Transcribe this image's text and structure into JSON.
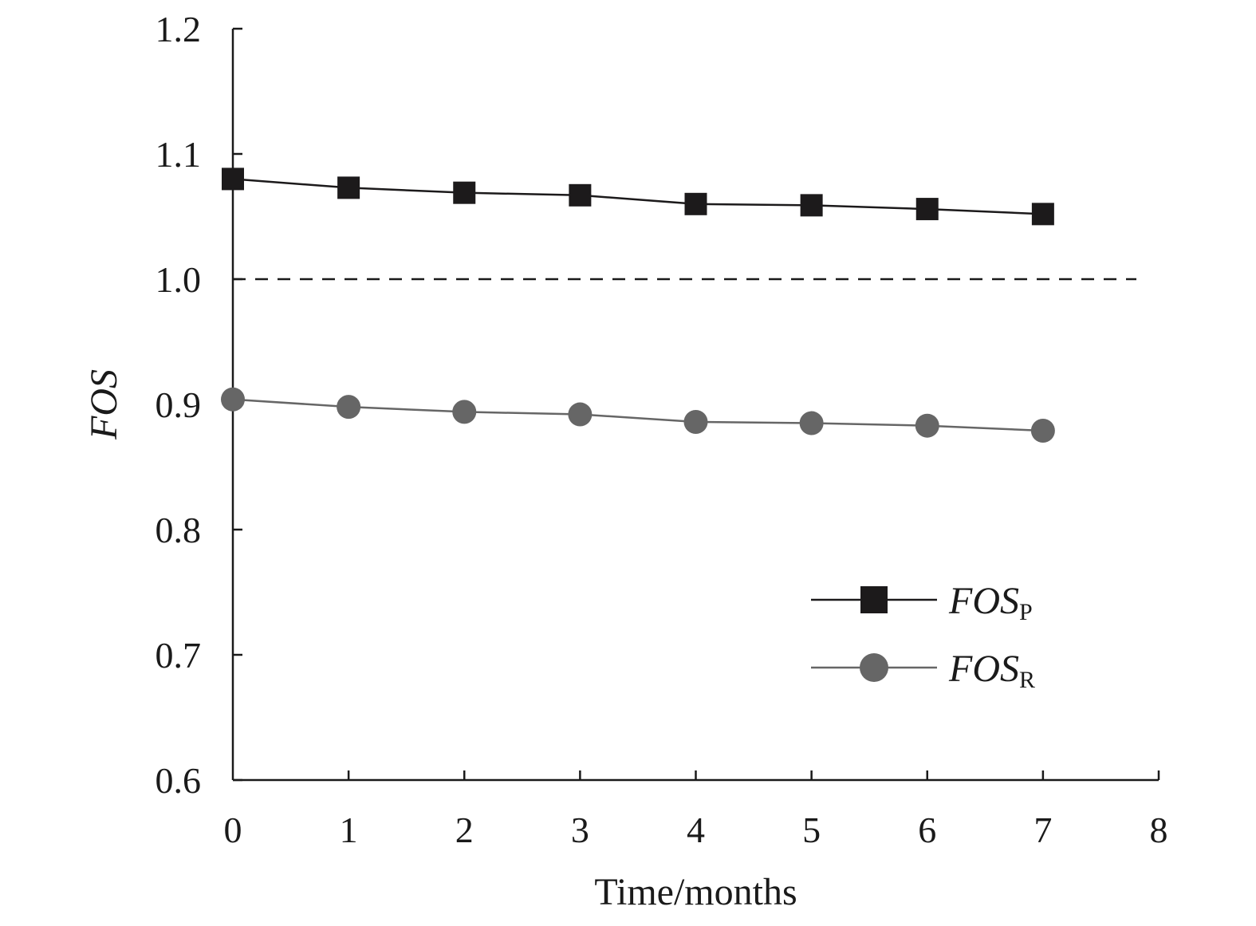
{
  "chart_data": {
    "type": "line",
    "title": "",
    "xlabel": "Time/months",
    "ylabel": "FOS",
    "xlim": [
      0,
      8
    ],
    "ylim": [
      0.6,
      1.2
    ],
    "xticks": [
      "0",
      "1",
      "2",
      "3",
      "4",
      "5",
      "6",
      "7",
      "8"
    ],
    "yticks": [
      "0.6",
      "0.7",
      "0.8",
      "0.9",
      "1.0",
      "1.1",
      "1.2"
    ],
    "x": [
      0,
      1,
      2,
      3,
      4,
      5,
      6,
      7
    ],
    "series": [
      {
        "name": "FOS",
        "subscript": "P",
        "marker": "square",
        "color": "#1c1a1b",
        "values": [
          1.08,
          1.073,
          1.069,
          1.067,
          1.06,
          1.059,
          1.056,
          1.052
        ]
      },
      {
        "name": "FOS",
        "subscript": "R",
        "marker": "circle",
        "color": "#666666",
        "values": [
          0.904,
          0.898,
          0.894,
          0.892,
          0.886,
          0.885,
          0.883,
          0.879
        ]
      }
    ],
    "reference_line": {
      "y": 1.0,
      "style": "dashed"
    },
    "grid": false,
    "legend_position": "bottom-right"
  }
}
